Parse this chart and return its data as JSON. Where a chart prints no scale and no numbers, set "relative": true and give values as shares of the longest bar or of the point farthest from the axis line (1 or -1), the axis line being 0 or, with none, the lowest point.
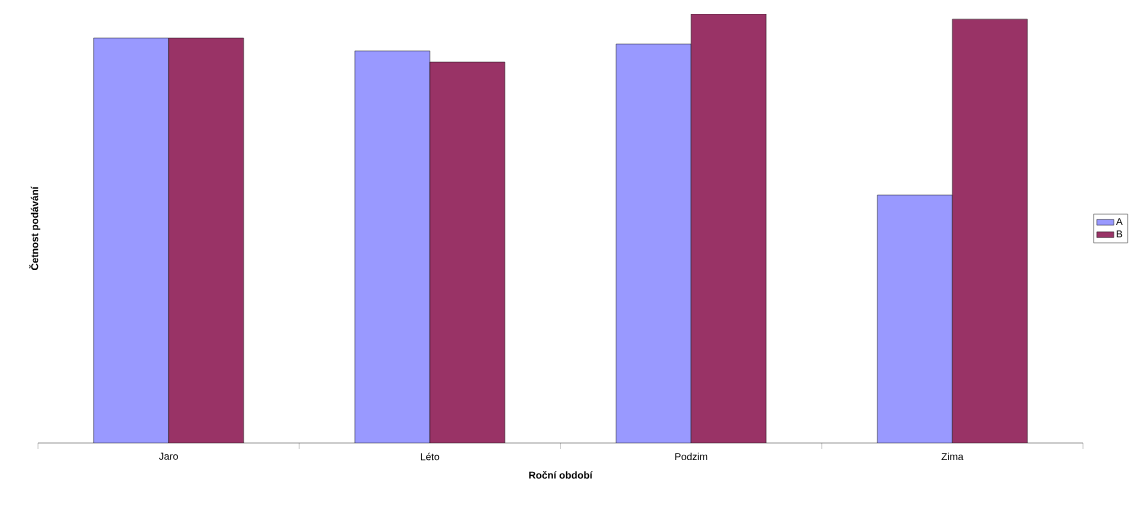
{
  "chart_data": {
    "type": "bar",
    "relative": true,
    "xlabel": "Roční období",
    "ylabel": "Četnost podávání",
    "categories": [
      "Jaro",
      "Léto",
      "Podzim",
      "Zima"
    ],
    "legend": "right",
    "series": [
      {
        "name": "A",
        "color": "#9999ff",
        "values": [
          0.944,
          0.914,
          0.93,
          0.578
        ]
      },
      {
        "name": "B",
        "color": "#993366",
        "values": [
          0.944,
          0.888,
          1,
          0.988
        ]
      }
    ]
  }
}
